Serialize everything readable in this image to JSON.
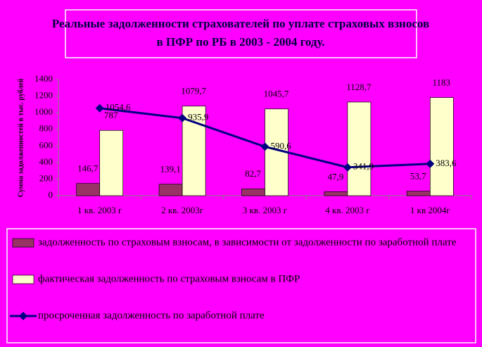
{
  "chart_data": {
    "type": "bar",
    "title": "Реальные задолженности страхователей по уплате страховых взносов в ПФР по РБ в 2003 - 2004 году.",
    "ylabel": "Сумма задолженностей в тыс. рублей",
    "categories": [
      "1 кв. 2003 г",
      "2 кв. 2003г",
      "3 кв. 2003 г",
      "4 кв. 2003 г",
      "1 кв 2004г"
    ],
    "ylim": [
      0,
      1400
    ],
    "yticks": [
      0,
      200,
      400,
      600,
      800,
      1000,
      1200,
      1400
    ],
    "background": "#ff00ff",
    "series": [
      {
        "name": "задолженность по страховым взносам, в зависимости от задолженности по заработной плате",
        "type": "bar",
        "color": "#993366",
        "values": [
          146.7,
          139.1,
          82.7,
          47.9,
          53.7
        ],
        "value_labels": [
          "146,7",
          "139,1",
          "82,7",
          "47,9",
          "53,7"
        ]
      },
      {
        "name": "фактическая задолженность по страховым взносам в ПФР",
        "type": "bar",
        "color": "#ffffcc",
        "values": [
          787,
          1079.7,
          1045.7,
          1128.7,
          1183
        ],
        "value_labels": [
          "787",
          "1079,7",
          "1045,7",
          "1128,7",
          "1183"
        ]
      },
      {
        "name": "просроченная задолженность по заработной плате",
        "type": "line",
        "color": "#000080",
        "values": [
          1054.6,
          935.9,
          590.6,
          341.9,
          383.6
        ],
        "value_labels": [
          "1054,6",
          "935,9",
          "590,6",
          "341,9",
          "383,6"
        ]
      }
    ]
  }
}
